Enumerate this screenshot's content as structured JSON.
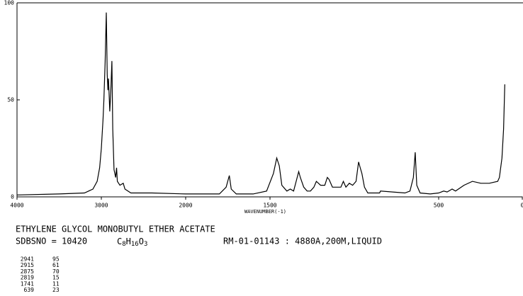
{
  "chart_data": {
    "type": "line",
    "x": [
      4000,
      3500,
      3200,
      3100,
      3050,
      3020,
      3000,
      2980,
      2970,
      2955,
      2941,
      2930,
      2922,
      2915,
      2900,
      2887,
      2875,
      2865,
      2850,
      2830,
      2819,
      2810,
      2780,
      2740,
      2720,
      2650,
      2400,
      2000,
      1800,
      1760,
      1741,
      1730,
      1700,
      1600,
      1520,
      1480,
      1460,
      1445,
      1430,
      1400,
      1380,
      1360,
      1345,
      1330,
      1320,
      1300,
      1280,
      1260,
      1240,
      1225,
      1200,
      1175,
      1160,
      1150,
      1130,
      1110,
      1080,
      1065,
      1050,
      1030,
      1010,
      990,
      975,
      965,
      955,
      940,
      920,
      870,
      850,
      845,
      700,
      670,
      650,
      639,
      630,
      610,
      550,
      500,
      470,
      450,
      420,
      400,
      350,
      300,
      250,
      200,
      150,
      140,
      125,
      115,
      108
    ],
    "series": [
      {
        "color": "#000000",
        "values": [
          1,
          1.5,
          2,
          4,
          8,
          15,
          25,
          40,
          50,
          70,
          95,
          63,
          55,
          61,
          44,
          55,
          70,
          35,
          14,
          10,
          15,
          8,
          6,
          7,
          4,
          2,
          2,
          1.5,
          1.5,
          5,
          11,
          4,
          1.5,
          1.5,
          3,
          12,
          20,
          16,
          6,
          3,
          4,
          3,
          8,
          13,
          10,
          5,
          3,
          3,
          5,
          8,
          6,
          6,
          10,
          9,
          5,
          5,
          5,
          8,
          5,
          7,
          6,
          8,
          18,
          15,
          12,
          5,
          2,
          2,
          2,
          3,
          2,
          3,
          10,
          23,
          6,
          2,
          1.5,
          2,
          3,
          2.5,
          4,
          3,
          6,
          8,
          7,
          7,
          8,
          10,
          20,
          35,
          58
        ]
      }
    ],
    "xlim": [
      4000,
      0
    ],
    "xticks": [
      4000,
      3000,
      2000,
      1500,
      500,
      0
    ],
    "x_expand_below": 2000,
    "ylim": [
      0,
      100
    ],
    "yticks": [
      0,
      50,
      100
    ],
    "xlabel": "WAVENUMBER(-1)",
    "compound": "ETHYLENE GLYCOL MONOBUTYL ETHER ACETATE",
    "sdbsno": "SDBSNO = 10420",
    "formula": {
      "C": "C",
      "c_n": "8",
      "H": "H",
      "h_n": "16",
      "O": "O",
      "o_n": "3"
    },
    "conditions": "RM-01-01143 : 4880A,200M,LIQUID",
    "peaks": [
      [
        "2941",
        "95"
      ],
      [
        "2915",
        "61"
      ],
      [
        "2875",
        "70"
      ],
      [
        "2819",
        "15"
      ],
      [
        "1741",
        "11"
      ],
      [
        "639",
        "23"
      ]
    ]
  }
}
